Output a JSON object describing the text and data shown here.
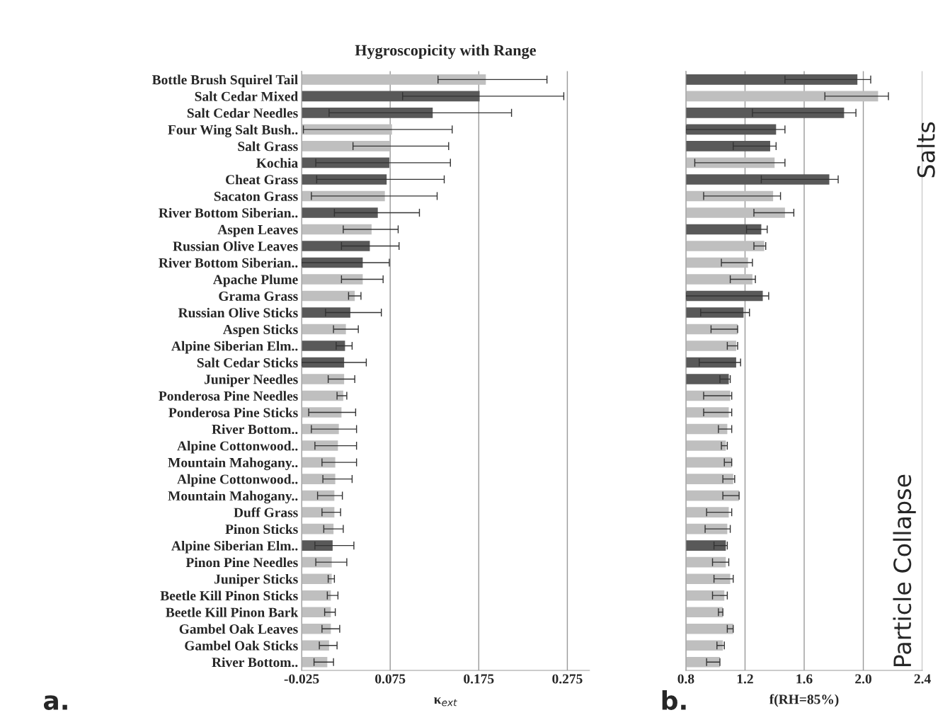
{
  "chart_data": [
    {
      "type": "bar",
      "orientation": "horizontal",
      "title": "Hygroscopicity with Range",
      "xlabel": "κ$_{ext}$",
      "categories": [
        "Bottle Brush Squirel Tail",
        "Salt Cedar Mixed",
        "Salt Cedar Needles",
        "Four Wing Salt Bush..",
        "Salt Grass",
        "Kochia",
        "Cheat Grass",
        "Sacaton Grass",
        "River Bottom Siberian..",
        "Aspen Leaves",
        "Russian Olive Leaves",
        "River Bottom Siberian..",
        "Apache Plume",
        "Grama Grass",
        "Russian Olive Sticks",
        "Aspen Sticks",
        "Alpine Siberian Elm..",
        "Salt Cedar Sticks",
        "Juniper Needles",
        "Ponderosa Pine Needles",
        "Ponderosa Pine Sticks",
        "River Bottom..",
        "Alpine Cottonwood..",
        "Mountain Mahogany..",
        "Alpine Cottonwood..",
        "Mountain Mahogany..",
        "Duff Grass",
        "Pinon Sticks",
        "Alpine Siberian Elm..",
        "Pinon Pine Needles",
        "Juniper Sticks",
        "Beetle Kill Pinon Sticks",
        "Beetle Kill Pinon Bark",
        "Gambel Oak Leaves",
        "Gambel Oak Sticks",
        "River Bottom.."
      ],
      "values": [
        0.208,
        0.201,
        0.148,
        0.102,
        0.1,
        0.099,
        0.096,
        0.094,
        0.086,
        0.079,
        0.077,
        0.069,
        0.069,
        0.06,
        0.055,
        0.05,
        0.049,
        0.048,
        0.048,
        0.047,
        0.045,
        0.042,
        0.041,
        0.038,
        0.038,
        0.037,
        0.037,
        0.036,
        0.035,
        0.034,
        0.034,
        0.033,
        0.033,
        0.033,
        0.031,
        0.029
      ],
      "base": [
        -0.025,
        -0.025,
        -0.025,
        -0.025,
        -0.025,
        -0.025,
        -0.025,
        -0.025,
        -0.025,
        -0.025,
        -0.025,
        -0.025,
        -0.025,
        -0.025,
        -0.025,
        -0.025,
        -0.025,
        -0.025,
        -0.025,
        -0.025,
        -0.025,
        -0.025,
        -0.025,
        -0.025,
        -0.025,
        -0.025,
        -0.025,
        -0.025,
        -0.025,
        -0.025,
        -0.025,
        -0.025,
        -0.025,
        -0.025,
        -0.025,
        -0.025
      ],
      "errors": [
        [
          0.129,
          0.252
        ],
        [
          0.089,
          0.271
        ],
        [
          0.006,
          0.212
        ],
        [
          -0.023,
          0.145
        ],
        [
          0.033,
          0.141
        ],
        [
          -0.009,
          0.143
        ],
        [
          -0.008,
          0.136
        ],
        [
          -0.014,
          0.128
        ],
        [
          0.012,
          0.108
        ],
        [
          0.022,
          0.084
        ],
        [
          0.02,
          0.085
        ],
        [
          -0.025,
          0.074
        ],
        [
          0.02,
          0.067
        ],
        [
          0.028,
          0.042
        ],
        [
          0.002,
          0.065
        ],
        [
          0.011,
          0.039
        ],
        [
          0.014,
          0.032
        ],
        [
          -0.025,
          0.048
        ],
        [
          0.005,
          0.035
        ],
        [
          0.015,
          0.026
        ],
        [
          -0.017,
          0.036
        ],
        [
          -0.014,
          0.037
        ],
        [
          -0.01,
          0.037
        ],
        [
          -0.002,
          0.037
        ],
        [
          -0.001,
          0.032
        ],
        [
          -0.007,
          0.021
        ],
        [
          -0.002,
          0.019
        ],
        [
          0.0,
          0.022
        ],
        [
          -0.01,
          0.034
        ],
        [
          -0.009,
          0.026
        ],
        [
          0.005,
          0.012
        ],
        [
          0.004,
          0.016
        ],
        [
          0.001,
          0.013
        ],
        [
          -0.002,
          0.018
        ],
        [
          -0.005,
          0.015
        ],
        [
          -0.011,
          0.011
        ]
      ],
      "colors": [
        "#bfbfbf",
        "#595959",
        "#595959",
        "#bfbfbf",
        "#bfbfbf",
        "#595959",
        "#595959",
        "#bfbfbf",
        "#595959",
        "#bfbfbf",
        "#595959",
        "#595959",
        "#bfbfbf",
        "#bfbfbf",
        "#595959",
        "#bfbfbf",
        "#595959",
        "#595959",
        "#bfbfbf",
        "#bfbfbf",
        "#bfbfbf",
        "#bfbfbf",
        "#bfbfbf",
        "#bfbfbf",
        "#bfbfbf",
        "#bfbfbf",
        "#bfbfbf",
        "#bfbfbf",
        "#595959",
        "#bfbfbf",
        "#bfbfbf",
        "#bfbfbf",
        "#bfbfbf",
        "#bfbfbf",
        "#bfbfbf",
        "#bfbfbf"
      ],
      "xlim": [
        -0.025,
        0.3
      ],
      "xticks": [
        -0.025,
        0.075,
        0.175,
        0.275
      ],
      "grid": "x",
      "annotations": [
        "a."
      ]
    },
    {
      "type": "bar",
      "orientation": "horizontal",
      "xlabel": "f(RH=85%)",
      "categories": [
        null,
        null,
        null,
        null,
        null,
        null,
        null,
        null,
        null,
        null,
        null,
        null,
        null,
        null,
        null,
        null,
        null,
        null,
        null,
        null,
        null,
        null,
        null,
        null,
        null,
        null,
        null,
        null,
        null,
        null,
        null,
        null,
        null,
        null,
        null,
        null
      ],
      "values": [
        1.96,
        2.1,
        1.87,
        1.41,
        1.37,
        1.4,
        1.77,
        1.39,
        1.47,
        1.31,
        1.33,
        1.22,
        1.25,
        1.32,
        1.19,
        1.15,
        1.14,
        1.14,
        1.09,
        1.1,
        1.09,
        1.08,
        1.07,
        1.11,
        1.12,
        1.16,
        1.09,
        1.08,
        1.07,
        1.07,
        1.1,
        1.06,
        1.05,
        1.12,
        1.05,
        1.03
      ],
      "errors": [
        [
          1.47,
          2.05
        ],
        [
          1.74,
          2.17
        ],
        [
          1.25,
          1.95
        ],
        [
          0.8,
          1.47
        ],
        [
          1.12,
          1.41
        ],
        [
          0.86,
          1.47
        ],
        [
          1.31,
          1.83
        ],
        [
          0.92,
          1.44
        ],
        [
          1.26,
          1.53
        ],
        [
          1.21,
          1.35
        ],
        [
          1.26,
          1.34
        ],
        [
          1.04,
          1.25
        ],
        [
          1.1,
          1.27
        ],
        [
          0.8,
          1.36
        ],
        [
          0.9,
          1.23
        ],
        [
          0.97,
          1.15
        ],
        [
          1.08,
          1.15
        ],
        [
          0.89,
          1.17
        ],
        [
          1.03,
          1.1
        ],
        [
          0.92,
          1.11
        ],
        [
          0.92,
          1.11
        ],
        [
          1.02,
          1.11
        ],
        [
          1.04,
          1.08
        ],
        [
          1.06,
          1.11
        ],
        [
          1.05,
          1.13
        ],
        [
          1.05,
          1.16
        ],
        [
          0.94,
          1.11
        ],
        [
          0.93,
          1.1
        ],
        [
          0.99,
          1.08
        ],
        [
          0.98,
          1.09
        ],
        [
          0.99,
          1.12
        ],
        [
          0.98,
          1.08
        ],
        [
          1.02,
          1.05
        ],
        [
          1.08,
          1.12
        ],
        [
          1.01,
          1.06
        ],
        [
          0.94,
          1.03
        ]
      ],
      "colors": [
        "#595959",
        "#bfbfbf",
        "#595959",
        "#595959",
        "#595959",
        "#bfbfbf",
        "#595959",
        "#bfbfbf",
        "#bfbfbf",
        "#595959",
        "#bfbfbf",
        "#bfbfbf",
        "#bfbfbf",
        "#595959",
        "#595959",
        "#bfbfbf",
        "#bfbfbf",
        "#595959",
        "#595959",
        "#bfbfbf",
        "#bfbfbf",
        "#bfbfbf",
        "#bfbfbf",
        "#bfbfbf",
        "#bfbfbf",
        "#bfbfbf",
        "#bfbfbf",
        "#bfbfbf",
        "#595959",
        "#bfbfbf",
        "#bfbfbf",
        "#bfbfbf",
        "#bfbfbf",
        "#bfbfbf",
        "#bfbfbf",
        "#bfbfbf"
      ],
      "xlim": [
        0.8,
        2.4
      ],
      "xticks": [
        0.8,
        1.2,
        1.6,
        {
          "value": 2,
          "label": "2.0"
        },
        2.4
      ],
      "grid": "x",
      "tick_labels": "x",
      "annotations": [
        "b.",
        "Salts",
        "Particle Collapse"
      ]
    }
  ]
}
